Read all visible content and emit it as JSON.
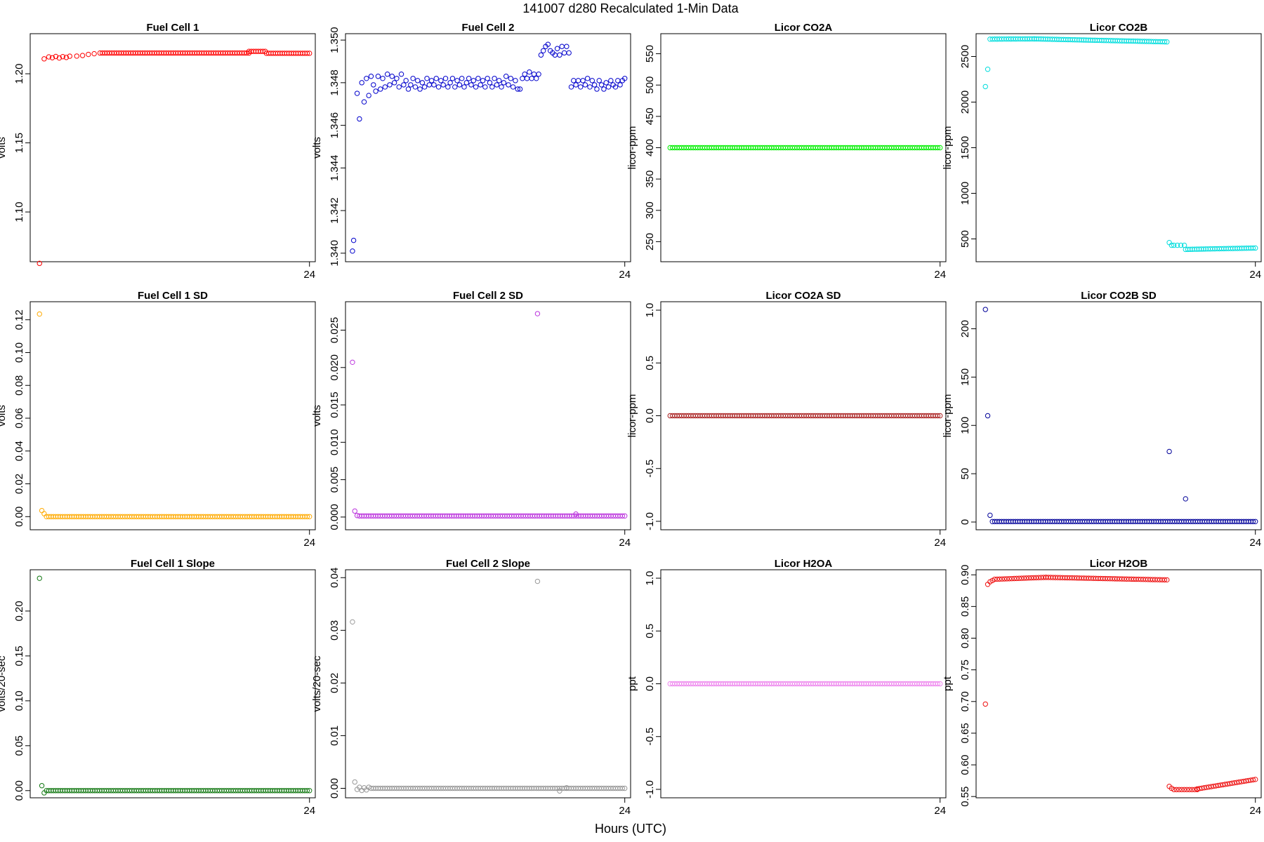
{
  "figure": {
    "title": "141007   d280   Recalculated 1-Min Data",
    "xlabel": "Hours (UTC)"
  },
  "chart_data": [
    {
      "type": "scatter",
      "title": "Fuel Cell 1",
      "ylabel": "volts",
      "color": "#ff0000",
      "ylim": [
        1.064,
        1.229
      ],
      "yticks": [
        1.1,
        1.15,
        1.2
      ],
      "ytick_labels": [
        "1.10",
        "1.15",
        "1.20"
      ],
      "xlim": [
        0,
        24.5
      ],
      "xticks": [
        24
      ],
      "xtick_labels": [
        "24"
      ],
      "series_points": [
        [
          0.8,
          1.0628
        ],
        [
          1.2,
          1.2108
        ],
        [
          1.6,
          1.2122
        ],
        [
          1.9,
          1.2116
        ],
        [
          2.2,
          1.2125
        ],
        [
          2.5,
          1.2114
        ],
        [
          2.8,
          1.2124
        ],
        [
          3.1,
          1.2118
        ],
        [
          3.4,
          1.2127
        ],
        [
          4.0,
          1.2128
        ],
        [
          4.5,
          1.2132
        ],
        [
          5.0,
          1.214
        ],
        [
          5.5,
          1.2145
        ]
      ],
      "segments": [
        {
          "x0": 6.0,
          "x1": 18.8,
          "y0": 1.215,
          "y1": 1.215,
          "n": 64
        },
        {
          "x0": 18.8,
          "x1": 20.2,
          "y0": 1.2162,
          "y1": 1.2162,
          "n": 8
        },
        {
          "x0": 20.3,
          "x1": 24.0,
          "y0": 1.2148,
          "y1": 1.2148,
          "n": 20
        }
      ]
    },
    {
      "type": "scatter",
      "title": "Fuel Cell 2",
      "ylabel": "volts",
      "color": "#0000cc",
      "ylim": [
        1.3396,
        1.3503
      ],
      "yticks": [
        1.34,
        1.342,
        1.344,
        1.346,
        1.348,
        1.35
      ],
      "ytick_labels": [
        "1.340",
        "1.342",
        "1.344",
        "1.346",
        "1.348",
        "1.350"
      ],
      "xlim": [
        0,
        24.5
      ],
      "xticks": [
        24
      ],
      "xtick_labels": [
        "24"
      ],
      "series_points": [
        [
          0.6,
          1.3401
        ],
        [
          0.7,
          1.3406
        ],
        [
          1.0,
          1.3475
        ],
        [
          1.2,
          1.3463
        ],
        [
          1.4,
          1.348
        ],
        [
          1.6,
          1.3471
        ],
        [
          1.8,
          1.3482
        ],
        [
          2.0,
          1.3474
        ],
        [
          2.2,
          1.3483
        ],
        [
          2.4,
          1.3479
        ],
        [
          2.6,
          1.3476
        ],
        [
          2.8,
          1.3483
        ],
        [
          3.0,
          1.3477
        ],
        [
          3.2,
          1.3482
        ],
        [
          3.4,
          1.3478
        ],
        [
          3.6,
          1.3484
        ],
        [
          3.8,
          1.3479
        ],
        [
          4.0,
          1.3483
        ],
        [
          4.2,
          1.348
        ],
        [
          4.4,
          1.3482
        ],
        [
          4.6,
          1.3478
        ],
        [
          4.8,
          1.3484
        ],
        [
          5.0,
          1.3479
        ],
        [
          5.2,
          1.3481
        ],
        [
          5.4,
          1.3477
        ],
        [
          5.6,
          1.3479
        ],
        [
          5.8,
          1.3482
        ],
        [
          6.0,
          1.3478
        ],
        [
          6.2,
          1.3481
        ],
        [
          6.4,
          1.3477
        ],
        [
          6.6,
          1.348
        ],
        [
          6.8,
          1.3478
        ],
        [
          7.0,
          1.3482
        ],
        [
          7.2,
          1.3479
        ],
        [
          7.4,
          1.3481
        ],
        [
          7.6,
          1.3479
        ],
        [
          7.8,
          1.3482
        ],
        [
          8.0,
          1.3478
        ],
        [
          8.2,
          1.3481
        ],
        [
          8.4,
          1.3479
        ],
        [
          8.6,
          1.3482
        ],
        [
          8.8,
          1.3478
        ],
        [
          9.0,
          1.348
        ],
        [
          9.2,
          1.3482
        ],
        [
          9.4,
          1.3478
        ],
        [
          9.6,
          1.3481
        ],
        [
          9.8,
          1.3479
        ],
        [
          10.0,
          1.3482
        ],
        [
          10.2,
          1.3478
        ],
        [
          10.4,
          1.348
        ],
        [
          10.6,
          1.3482
        ],
        [
          10.8,
          1.3479
        ],
        [
          11.0,
          1.3481
        ],
        [
          11.2,
          1.3478
        ],
        [
          11.4,
          1.3482
        ],
        [
          11.6,
          1.3479
        ],
        [
          11.8,
          1.3481
        ],
        [
          12.0,
          1.3478
        ],
        [
          12.2,
          1.3482
        ],
        [
          12.4,
          1.348
        ],
        [
          12.6,
          1.3478
        ],
        [
          12.8,
          1.3482
        ],
        [
          13.0,
          1.3479
        ],
        [
          13.2,
          1.3481
        ],
        [
          13.4,
          1.3478
        ],
        [
          13.6,
          1.348
        ],
        [
          13.8,
          1.3483
        ],
        [
          14.0,
          1.3479
        ],
        [
          14.2,
          1.3482
        ],
        [
          14.4,
          1.3478
        ],
        [
          14.6,
          1.3481
        ],
        [
          14.8,
          1.3477
        ],
        [
          15.0,
          1.3477
        ],
        [
          15.2,
          1.3482
        ],
        [
          15.4,
          1.3484
        ],
        [
          15.6,
          1.3482
        ],
        [
          15.8,
          1.3485
        ],
        [
          16.0,
          1.3482
        ],
        [
          16.2,
          1.3484
        ],
        [
          16.4,
          1.3482
        ],
        [
          16.6,
          1.3484
        ],
        [
          16.8,
          1.3493
        ],
        [
          17.0,
          1.3495
        ],
        [
          17.2,
          1.3497
        ],
        [
          17.4,
          1.3498
        ],
        [
          17.6,
          1.3495
        ],
        [
          17.8,
          1.3494
        ],
        [
          18.0,
          1.3493
        ],
        [
          18.2,
          1.3496
        ],
        [
          18.4,
          1.3493
        ],
        [
          18.6,
          1.3497
        ],
        [
          18.8,
          1.3494
        ],
        [
          19.0,
          1.3497
        ],
        [
          19.2,
          1.3494
        ],
        [
          19.4,
          1.3478
        ],
        [
          19.6,
          1.3481
        ],
        [
          19.8,
          1.3479
        ],
        [
          20.0,
          1.3481
        ],
        [
          20.2,
          1.3478
        ],
        [
          20.4,
          1.3481
        ],
        [
          20.6,
          1.3479
        ],
        [
          20.8,
          1.3482
        ],
        [
          21.0,
          1.3478
        ],
        [
          21.2,
          1.3481
        ],
        [
          21.4,
          1.3479
        ],
        [
          21.6,
          1.3477
        ],
        [
          21.8,
          1.3481
        ],
        [
          22.0,
          1.3479
        ],
        [
          22.2,
          1.3477
        ],
        [
          22.4,
          1.348
        ],
        [
          22.6,
          1.3478
        ],
        [
          22.8,
          1.3481
        ],
        [
          23.0,
          1.3479
        ],
        [
          23.2,
          1.3478
        ],
        [
          23.4,
          1.3481
        ],
        [
          23.6,
          1.3479
        ],
        [
          23.8,
          1.3481
        ],
        [
          24.0,
          1.3482
        ]
      ],
      "segments": []
    },
    {
      "type": "scatter",
      "title": "Licor CO2A",
      "ylabel": "licor-ppm",
      "color": "#00ee00",
      "ylim": [
        218,
        582
      ],
      "yticks": [
        250,
        300,
        350,
        400,
        450,
        500,
        550
      ],
      "ytick_labels": [
        "250",
        "300",
        "350",
        "400",
        "450",
        "500",
        "550"
      ],
      "xlim": [
        0,
        24.5
      ],
      "xticks": [
        24
      ],
      "xtick_labels": [
        "24"
      ],
      "series_points": [],
      "segments": [
        {
          "x0": 0.8,
          "x1": 24.0,
          "y0": 400,
          "y1": 400,
          "n": 118
        }
      ]
    },
    {
      "type": "scatter",
      "title": "Licor CO2B",
      "ylabel": "licor-ppm",
      "color": "#00dddd",
      "ylim": [
        250,
        2750
      ],
      "yticks": [
        500,
        1000,
        1500,
        2000,
        2500
      ],
      "ytick_labels": [
        "500",
        "1000",
        "1500",
        "2000",
        "2500"
      ],
      "xlim": [
        0,
        24.5
      ],
      "xticks": [
        24
      ],
      "xtick_labels": [
        "24"
      ],
      "series_points": [
        [
          0.8,
          2170
        ],
        [
          1.0,
          2360
        ],
        [
          16.6,
          460
        ],
        [
          16.8,
          430
        ],
        [
          17.0,
          430
        ],
        [
          17.3,
          430
        ],
        [
          17.6,
          430
        ],
        [
          17.9,
          430
        ]
      ],
      "segments": [
        {
          "x0": 1.2,
          "x1": 5.0,
          "y0": 2690,
          "y1": 2693,
          "n": 20
        },
        {
          "x0": 5.0,
          "x1": 16.4,
          "y0": 2693,
          "y1": 2660,
          "n": 60
        },
        {
          "x0": 18.0,
          "x1": 24.0,
          "y0": 385,
          "y1": 400,
          "n": 32
        }
      ]
    },
    {
      "type": "scatter",
      "title": "Fuel Cell 1 SD",
      "ylabel": "volts",
      "color": "#ffaa00",
      "ylim": [
        -0.008,
        0.131
      ],
      "yticks": [
        0.0,
        0.02,
        0.04,
        0.06,
        0.08,
        0.1,
        0.12
      ],
      "ytick_labels": [
        "0.00",
        "0.02",
        "0.04",
        "0.06",
        "0.08",
        "0.10",
        "0.12"
      ],
      "xlim": [
        0,
        24.5
      ],
      "xticks": [
        24
      ],
      "xtick_labels": [
        "24"
      ],
      "series_points": [
        [
          0.8,
          0.1235
        ],
        [
          1.0,
          0.0037
        ],
        [
          1.2,
          0.0018
        ]
      ],
      "segments": [
        {
          "x0": 1.4,
          "x1": 24.0,
          "y0": 0.0,
          "y1": 0.0,
          "n": 115
        }
      ]
    },
    {
      "type": "scatter",
      "title": "Fuel Cell 2 SD",
      "ylabel": "volts",
      "color": "#bb33dd",
      "ylim": [
        -0.0017,
        0.0288
      ],
      "yticks": [
        0.0,
        0.005,
        0.01,
        0.015,
        0.02,
        0.025
      ],
      "ytick_labels": [
        "0.000",
        "0.005",
        "0.010",
        "0.015",
        "0.020",
        "0.025"
      ],
      "xlim": [
        0,
        24.5
      ],
      "xticks": [
        24
      ],
      "xtick_labels": [
        "24"
      ],
      "series_points": [
        [
          0.6,
          0.0207
        ],
        [
          0.8,
          0.0008
        ],
        [
          1.0,
          0.0002
        ],
        [
          16.5,
          0.0272
        ],
        [
          19.8,
          0.0004
        ]
      ],
      "segments": [
        {
          "x0": 1.2,
          "x1": 24.0,
          "y0": 0.00015,
          "y1": 0.00015,
          "n": 116
        }
      ]
    },
    {
      "type": "scatter",
      "title": "Licor CO2A SD",
      "ylabel": "licor-ppm",
      "color": "#aa2222",
      "ylim": [
        -1.08,
        1.08
      ],
      "yticks": [
        -1.0,
        -0.5,
        0.0,
        0.5,
        1.0
      ],
      "ytick_labels": [
        "-1.0",
        "-0.5",
        "0.0",
        "0.5",
        "1.0"
      ],
      "xlim": [
        0,
        24.5
      ],
      "xticks": [
        24
      ],
      "xtick_labels": [
        "24"
      ],
      "series_points": [],
      "segments": [
        {
          "x0": 0.8,
          "x1": 24.0,
          "y0": 0.0,
          "y1": 0.0,
          "n": 118
        }
      ]
    },
    {
      "type": "scatter",
      "title": "Licor CO2B SD",
      "ylabel": "licor-ppm",
      "color": "#000099",
      "ylim": [
        -8,
        228
      ],
      "yticks": [
        0,
        50,
        100,
        150,
        200
      ],
      "ytick_labels": [
        "0",
        "50",
        "100",
        "150",
        "200"
      ],
      "xlim": [
        0,
        24.5
      ],
      "xticks": [
        24
      ],
      "xtick_labels": [
        "24"
      ],
      "series_points": [
        [
          0.8,
          220
        ],
        [
          1.0,
          110
        ],
        [
          1.2,
          7
        ],
        [
          16.6,
          73
        ],
        [
          18.0,
          24
        ]
      ],
      "segments": [
        {
          "x0": 1.4,
          "x1": 24.0,
          "y0": 0.5,
          "y1": 0.5,
          "n": 115
        }
      ]
    },
    {
      "type": "scatter",
      "title": "Fuel Cell 1 Slope",
      "ylabel": "volts/20-sec",
      "color": "#117711",
      "ylim": [
        -0.008,
        0.246
      ],
      "yticks": [
        0.0,
        0.05,
        0.1,
        0.15,
        0.2
      ],
      "ytick_labels": [
        "0.00",
        "0.05",
        "0.10",
        "0.15",
        "0.20"
      ],
      "xlim": [
        0,
        24.5
      ],
      "xticks": [
        24
      ],
      "xtick_labels": [
        "24"
      ],
      "series_points": [
        [
          0.8,
          0.2365
        ],
        [
          1.0,
          0.0055
        ],
        [
          1.2,
          -0.0025
        ]
      ],
      "segments": [
        {
          "x0": 1.4,
          "x1": 24.0,
          "y0": 0.0,
          "y1": 0.0,
          "n": 115
        }
      ]
    },
    {
      "type": "scatter",
      "title": "Fuel Cell 2 Slope",
      "ylabel": "volts/20-sec",
      "color": "#999999",
      "ylim": [
        -0.0018,
        0.0415
      ],
      "yticks": [
        0.0,
        0.01,
        0.02,
        0.03,
        0.04
      ],
      "ytick_labels": [
        "0.00",
        "0.01",
        "0.02",
        "0.03",
        "0.04"
      ],
      "xlim": [
        0,
        24.5
      ],
      "xticks": [
        24
      ],
      "xtick_labels": [
        "24"
      ],
      "series_points": [
        [
          0.6,
          0.0316
        ],
        [
          0.8,
          0.0012
        ],
        [
          1.0,
          -0.0002
        ],
        [
          1.2,
          0.0002
        ],
        [
          1.4,
          -0.0004
        ],
        [
          1.6,
          0.0001
        ],
        [
          1.8,
          -0.0003
        ],
        [
          2.0,
          0.0002
        ],
        [
          16.5,
          0.0393
        ],
        [
          18.4,
          -0.0005
        ],
        [
          19.0,
          0.0001
        ]
      ],
      "segments": [
        {
          "x0": 2.2,
          "x1": 24.0,
          "y0": 0.0,
          "y1": 0.0,
          "n": 110
        }
      ]
    },
    {
      "type": "scatter",
      "title": "Licor H2OA",
      "ylabel": "ppt",
      "color": "#ee88ee",
      "ylim": [
        -1.08,
        1.08
      ],
      "yticks": [
        -1.0,
        -0.5,
        0.0,
        0.5,
        1.0
      ],
      "ytick_labels": [
        "-1.0",
        "-0.5",
        "0.0",
        "0.5",
        "1.0"
      ],
      "xlim": [
        0,
        24.5
      ],
      "xticks": [
        24
      ],
      "xtick_labels": [
        "24"
      ],
      "series_points": [],
      "segments": [
        {
          "x0": 0.8,
          "x1": 24.0,
          "y0": 0.0,
          "y1": 0.0,
          "n": 118
        }
      ]
    },
    {
      "type": "scatter",
      "title": "Licor H2OB",
      "ylabel": "ppt",
      "color": "#ee1111",
      "ylim": [
        0.548,
        0.908
      ],
      "yticks": [
        0.55,
        0.6,
        0.65,
        0.7,
        0.75,
        0.8,
        0.85,
        0.9
      ],
      "ytick_labels": [
        "0.55",
        "0.60",
        "0.65",
        "0.70",
        "0.75",
        "0.80",
        "0.85",
        "0.90"
      ],
      "xlim": [
        0,
        24.5
      ],
      "xticks": [
        24
      ],
      "xtick_labels": [
        "24"
      ],
      "series_points": [
        [
          0.8,
          0.696
        ],
        [
          1.0,
          0.885
        ],
        [
          1.2,
          0.889
        ],
        [
          1.4,
          0.891
        ],
        [
          16.6,
          0.566
        ],
        [
          16.8,
          0.563
        ]
      ],
      "segments": [
        {
          "x0": 1.6,
          "x1": 6.0,
          "y0": 0.893,
          "y1": 0.896,
          "n": 22
        },
        {
          "x0": 6.0,
          "x1": 16.4,
          "y0": 0.896,
          "y1": 0.892,
          "n": 52
        },
        {
          "x0": 17.0,
          "x1": 19.0,
          "y0": 0.561,
          "y1": 0.561,
          "n": 10
        },
        {
          "x0": 19.0,
          "x1": 24.0,
          "y0": 0.562,
          "y1": 0.577,
          "n": 26
        }
      ]
    }
  ]
}
